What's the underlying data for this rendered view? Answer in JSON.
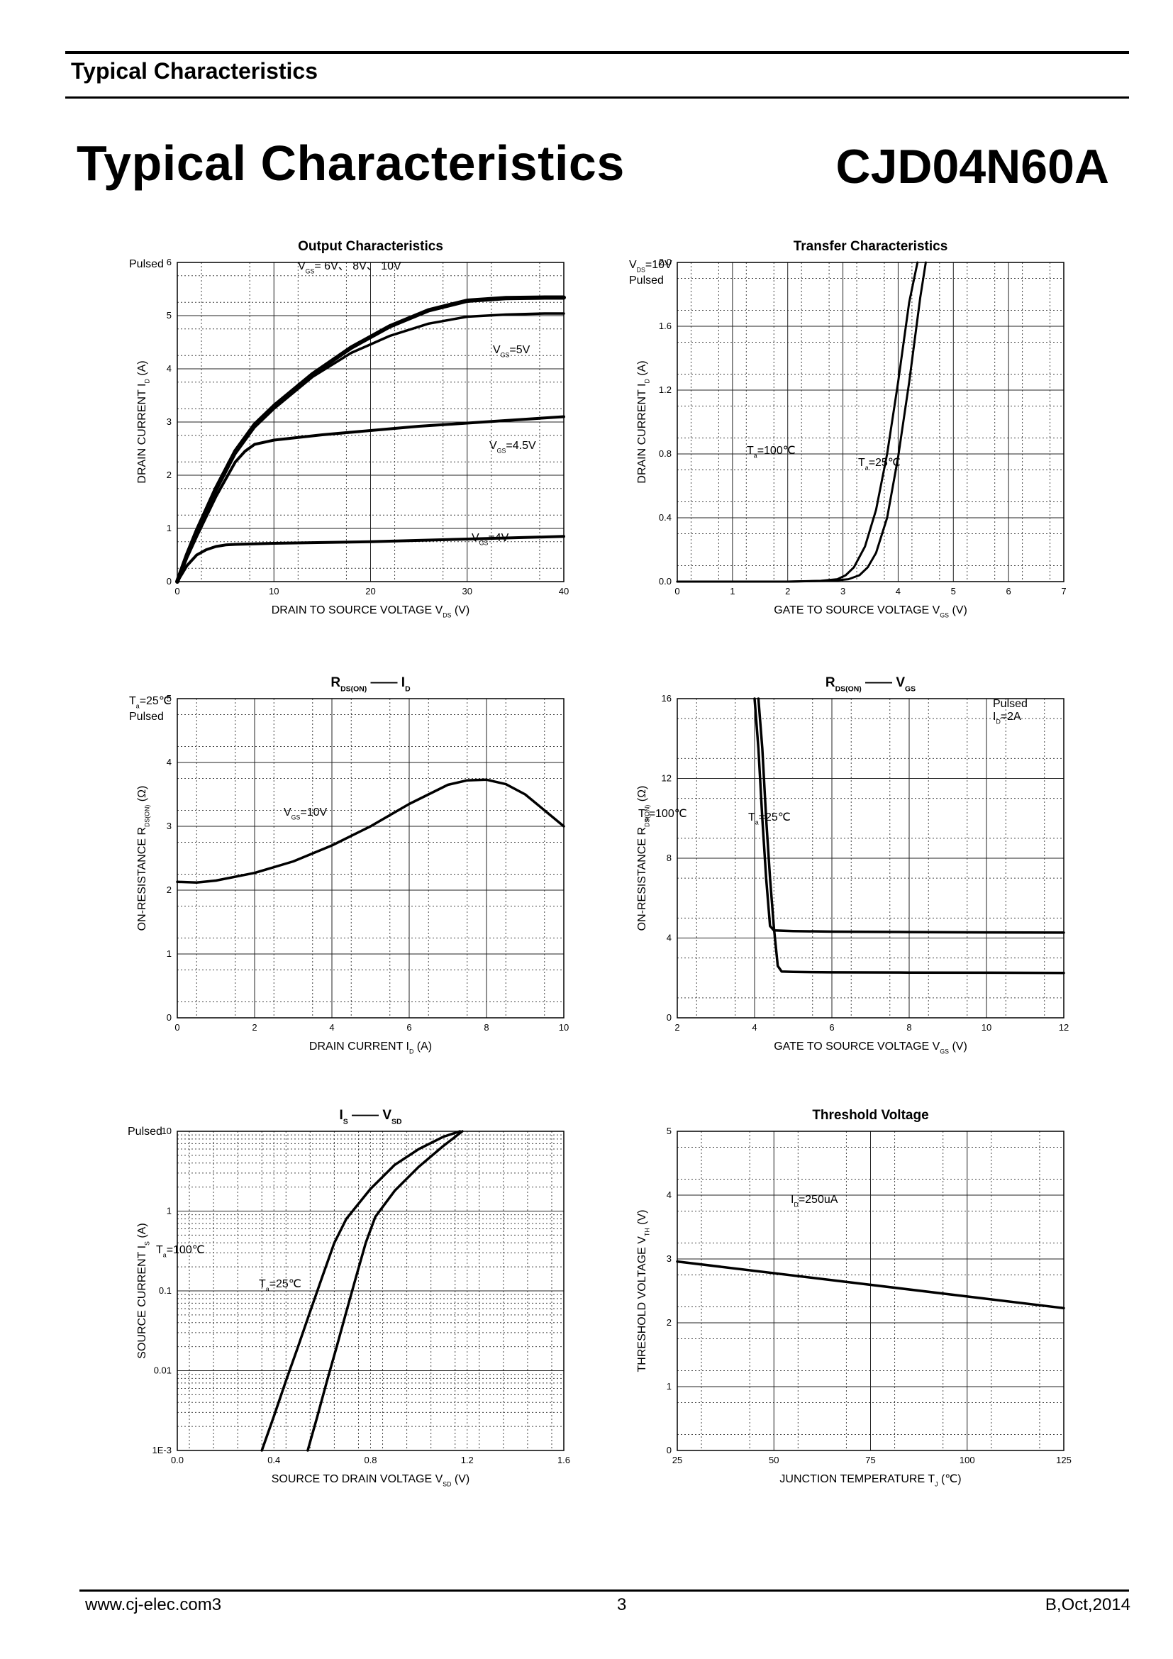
{
  "header": {
    "section_label": "Typical Characteristics"
  },
  "page": {
    "title": "Typical Characteristics",
    "part_number": "CJD04N60A"
  },
  "footer": {
    "url": "www.cj-elec.com3",
    "page": "3",
    "revision": "B,Oct,2014"
  },
  "chart_data": [
    {
      "type": "line",
      "title": "Output Characteristics",
      "xlabel": "DRAIN TO SOURCE VOLTAGE",
      "xsym": "V",
      "xsub": "DS",
      "xunit": "(V)",
      "ylabel": "DRAIN CURRENT",
      "ysym": "I",
      "ysub": "D",
      "yunit": "(A)",
      "xlim": [
        0,
        40
      ],
      "ylim": [
        0,
        6
      ],
      "xticks": [
        "0",
        "10",
        "20",
        "30",
        "40"
      ],
      "yticks": [
        "0",
        "1",
        "2",
        "3",
        "4",
        "5",
        "6"
      ],
      "grid": true,
      "annotations": [
        {
          "text": "Pulsed"
        },
        {
          "text": "V",
          "sub": "GS",
          "rest": "= 6V、 8V、 10V"
        },
        {
          "text": "V",
          "sub": "GS",
          "rest": "=5V"
        },
        {
          "text": "V",
          "sub": "GS",
          "rest": "=4.5V"
        },
        {
          "text": "V",
          "sub": "GS",
          "rest": "=4V"
        }
      ],
      "series": [
        {
          "name": "VGS=6V, 8V, 10V",
          "x": [
            0,
            1,
            2,
            4,
            6,
            8,
            10,
            14,
            18,
            22,
            26,
            30,
            34,
            38,
            40
          ],
          "y": [
            0,
            0.5,
            0.95,
            1.75,
            2.45,
            2.95,
            3.3,
            3.9,
            4.4,
            4.8,
            5.1,
            5.28,
            5.33,
            5.34,
            5.34
          ]
        },
        {
          "name": "VGS=5V",
          "x": [
            0,
            1,
            2,
            4,
            6,
            8,
            10,
            14,
            18,
            22,
            26,
            30,
            34,
            38,
            40
          ],
          "y": [
            0,
            0.48,
            0.9,
            1.7,
            2.4,
            2.9,
            3.25,
            3.85,
            4.3,
            4.62,
            4.85,
            4.98,
            5.02,
            5.04,
            5.04
          ]
        },
        {
          "name": "VGS=4.5V",
          "x": [
            0,
            1,
            2,
            4,
            6,
            7,
            8,
            10,
            15,
            20,
            25,
            30,
            35,
            40
          ],
          "y": [
            0,
            0.45,
            0.85,
            1.6,
            2.25,
            2.45,
            2.58,
            2.66,
            2.76,
            2.84,
            2.92,
            2.98,
            3.04,
            3.1
          ]
        },
        {
          "name": "VGS=4V",
          "x": [
            0,
            1,
            2,
            3,
            4,
            5,
            6,
            10,
            20,
            30,
            40
          ],
          "y": [
            0,
            0.3,
            0.5,
            0.6,
            0.66,
            0.69,
            0.7,
            0.72,
            0.75,
            0.8,
            0.85
          ]
        }
      ]
    },
    {
      "type": "line",
      "title": "Transfer Characteristics",
      "xlabel": "GATE TO SOURCE VOLTAGE",
      "xsym": "V",
      "xsub": "GS",
      "xunit": "(V)",
      "ylabel": "DRAIN CURRENT",
      "ysym": "I",
      "ysub": "D",
      "yunit": "(A)",
      "xlim": [
        0,
        7
      ],
      "ylim": [
        0,
        2.0
      ],
      "xticks": [
        "0",
        "1",
        "2",
        "3",
        "4",
        "5",
        "6",
        "7"
      ],
      "yticks": [
        "0.0",
        "0.4",
        "0.8",
        "1.2",
        "1.6",
        "2.0"
      ],
      "grid": true,
      "annotations": [
        {
          "text": "V",
          "sub": "DS",
          "rest": "=10V"
        },
        {
          "text": "Pulsed"
        },
        {
          "text": "T",
          "sub": "a",
          "rest": "=100℃"
        },
        {
          "text": "T",
          "sub": "a",
          "rest": "=25℃"
        }
      ],
      "series": [
        {
          "name": "Ta=100℃",
          "x": [
            0,
            2,
            2.6,
            2.9,
            3.05,
            3.2,
            3.4,
            3.6,
            3.8,
            4.0,
            4.2,
            4.35
          ],
          "y": [
            0,
            0,
            0.005,
            0.015,
            0.04,
            0.09,
            0.22,
            0.45,
            0.8,
            1.25,
            1.75,
            2.0
          ]
        },
        {
          "name": "Ta=25℃",
          "x": [
            0,
            2,
            2.8,
            3.1,
            3.3,
            3.45,
            3.6,
            3.8,
            4.0,
            4.2,
            4.4,
            4.5
          ],
          "y": [
            0,
            0,
            0.005,
            0.015,
            0.04,
            0.09,
            0.18,
            0.4,
            0.78,
            1.25,
            1.78,
            2.0
          ]
        }
      ]
    },
    {
      "type": "line",
      "title": "R",
      "title_sub": "DS(ON)",
      "title_dash": "——",
      "title_sym2": "I",
      "title_sub2": "D",
      "xlabel": "DRAIN CURRENT",
      "xsym": "I",
      "xsub": "D",
      "xunit": "(A)",
      "ylabel": "ON-RESISTANCE",
      "ysym": "R",
      "ysub": "DS(ON)",
      "yunit": "(Ω)",
      "xlim": [
        0,
        10
      ],
      "ylim": [
        0,
        5
      ],
      "xticks": [
        "0",
        "2",
        "4",
        "6",
        "8",
        "10"
      ],
      "yticks": [
        "0",
        "1",
        "2",
        "3",
        "4",
        "5"
      ],
      "grid": true,
      "annotations": [
        {
          "text": "T",
          "sub": "a",
          "rest": "=25℃"
        },
        {
          "text": "Pulsed"
        },
        {
          "text": "V",
          "sub": "GS",
          "rest": "=10V"
        }
      ],
      "series": [
        {
          "name": "VGS=10V",
          "x": [
            0,
            0.5,
            1,
            2,
            3,
            4,
            5,
            6,
            7,
            7.5,
            8,
            8.5,
            9,
            9.5,
            10
          ],
          "y": [
            2.13,
            2.12,
            2.15,
            2.27,
            2.45,
            2.7,
            3.0,
            3.35,
            3.65,
            3.72,
            3.73,
            3.66,
            3.5,
            3.25,
            3.0
          ]
        }
      ]
    },
    {
      "type": "line",
      "title": "R",
      "title_sub": "DS(ON)",
      "title_dash": "——",
      "title_sym2": "V",
      "title_sub2": "GS",
      "xlabel": "GATE TO SOURCE VOLTAGE",
      "xsym": "V",
      "xsub": "GS",
      "xunit": "(V)",
      "ylabel": "ON-RESISTANCE",
      "ysym": "R",
      "ysub": "DS(ON)",
      "yunit": "(Ω)",
      "xlim": [
        2,
        12
      ],
      "ylim": [
        0,
        16
      ],
      "xticks": [
        "2",
        "4",
        "6",
        "8",
        "10",
        "12"
      ],
      "yticks": [
        "0",
        "4",
        "8",
        "12",
        "16"
      ],
      "grid": true,
      "annotations": [
        {
          "text": "Pulsed"
        },
        {
          "text": "I",
          "sub": "D",
          "rest": "=2A"
        },
        {
          "text": "T",
          "sub": "a",
          "rest": "=100℃"
        },
        {
          "text": "T",
          "sub": "a",
          "rest": "=25℃"
        }
      ],
      "series": [
        {
          "name": "Ta=100℃",
          "x": [
            4.0,
            4.1,
            4.2,
            4.3,
            4.4,
            4.5,
            5,
            6,
            8,
            10,
            12
          ],
          "y": [
            16,
            13.5,
            10,
            7,
            4.6,
            4.38,
            4.35,
            4.32,
            4.3,
            4.28,
            4.27
          ]
        },
        {
          "name": "Ta=25℃",
          "x": [
            4.1,
            4.2,
            4.3,
            4.4,
            4.5,
            4.6,
            4.7,
            5,
            6,
            8,
            10,
            12
          ],
          "y": [
            16,
            13.5,
            10,
            7,
            4.5,
            2.6,
            2.32,
            2.3,
            2.28,
            2.27,
            2.26,
            2.25
          ]
        }
      ]
    },
    {
      "type": "line",
      "title": "I",
      "title_sub": "S",
      "title_dash": "——",
      "title_sym2": "V",
      "title_sub2": "SD",
      "xlabel": "SOURCE TO DRAIN VOLTAGE",
      "xsym": "V",
      "xsub": "SD",
      "xunit": "(V)",
      "ylabel": "SOURCE CURRENT",
      "ysym": "I",
      "ysub": "S",
      "yunit": "(A)",
      "xlim": [
        0,
        1.6
      ],
      "ylim": [
        0.001,
        10
      ],
      "yscale": "log",
      "xticks": [
        "0.0",
        "0.4",
        "0.8",
        "1.2",
        "1.6"
      ],
      "yticks": [
        "1E-3",
        "0.01",
        "0.1",
        "1",
        "10"
      ],
      "grid": true,
      "annotations": [
        {
          "text": "Pulsed"
        },
        {
          "text": "T",
          "sub": "a",
          "rest": "=100℃"
        },
        {
          "text": "T",
          "sub": "a",
          "rest": "=25℃"
        }
      ],
      "series": [
        {
          "name": "Ta=100℃",
          "x": [
            0.35,
            0.4,
            0.45,
            0.5,
            0.55,
            0.6,
            0.65,
            0.7,
            0.8,
            0.9,
            1.0,
            1.1,
            1.17
          ],
          "y": [
            0.001,
            0.0027,
            0.0075,
            0.02,
            0.055,
            0.15,
            0.4,
            0.8,
            1.9,
            3.8,
            6.0,
            8.5,
            10
          ]
        },
        {
          "name": "Ta=25℃",
          "x": [
            0.54,
            0.58,
            0.62,
            0.66,
            0.7,
            0.74,
            0.78,
            0.82,
            0.9,
            1.0,
            1.1,
            1.18
          ],
          "y": [
            0.001,
            0.0027,
            0.0075,
            0.02,
            0.055,
            0.15,
            0.4,
            0.85,
            1.8,
            3.6,
            6.5,
            10
          ]
        }
      ]
    },
    {
      "type": "line",
      "title": "Threshold Voltage",
      "xlabel": "JUNCTION TEMPERATURE",
      "xsym": "T",
      "xsub": "J",
      "xunit": "(℃)",
      "ylabel": "THRESHOLD VOLTAGE",
      "ysym": "V",
      "ysub": "TH",
      "yunit": "(V)",
      "xlim": [
        25,
        125
      ],
      "ylim": [
        0,
        5
      ],
      "xticks": [
        "25",
        "50",
        "75",
        "100",
        "125"
      ],
      "yticks": [
        "0",
        "1",
        "2",
        "3",
        "4",
        "5"
      ],
      "grid": true,
      "annotations": [
        {
          "text": "I",
          "sub": "D",
          "rest": "=250uA"
        }
      ],
      "series": [
        {
          "name": "ID=250uA",
          "x": [
            25,
            125
          ],
          "y": [
            2.96,
            2.23
          ]
        }
      ]
    }
  ]
}
